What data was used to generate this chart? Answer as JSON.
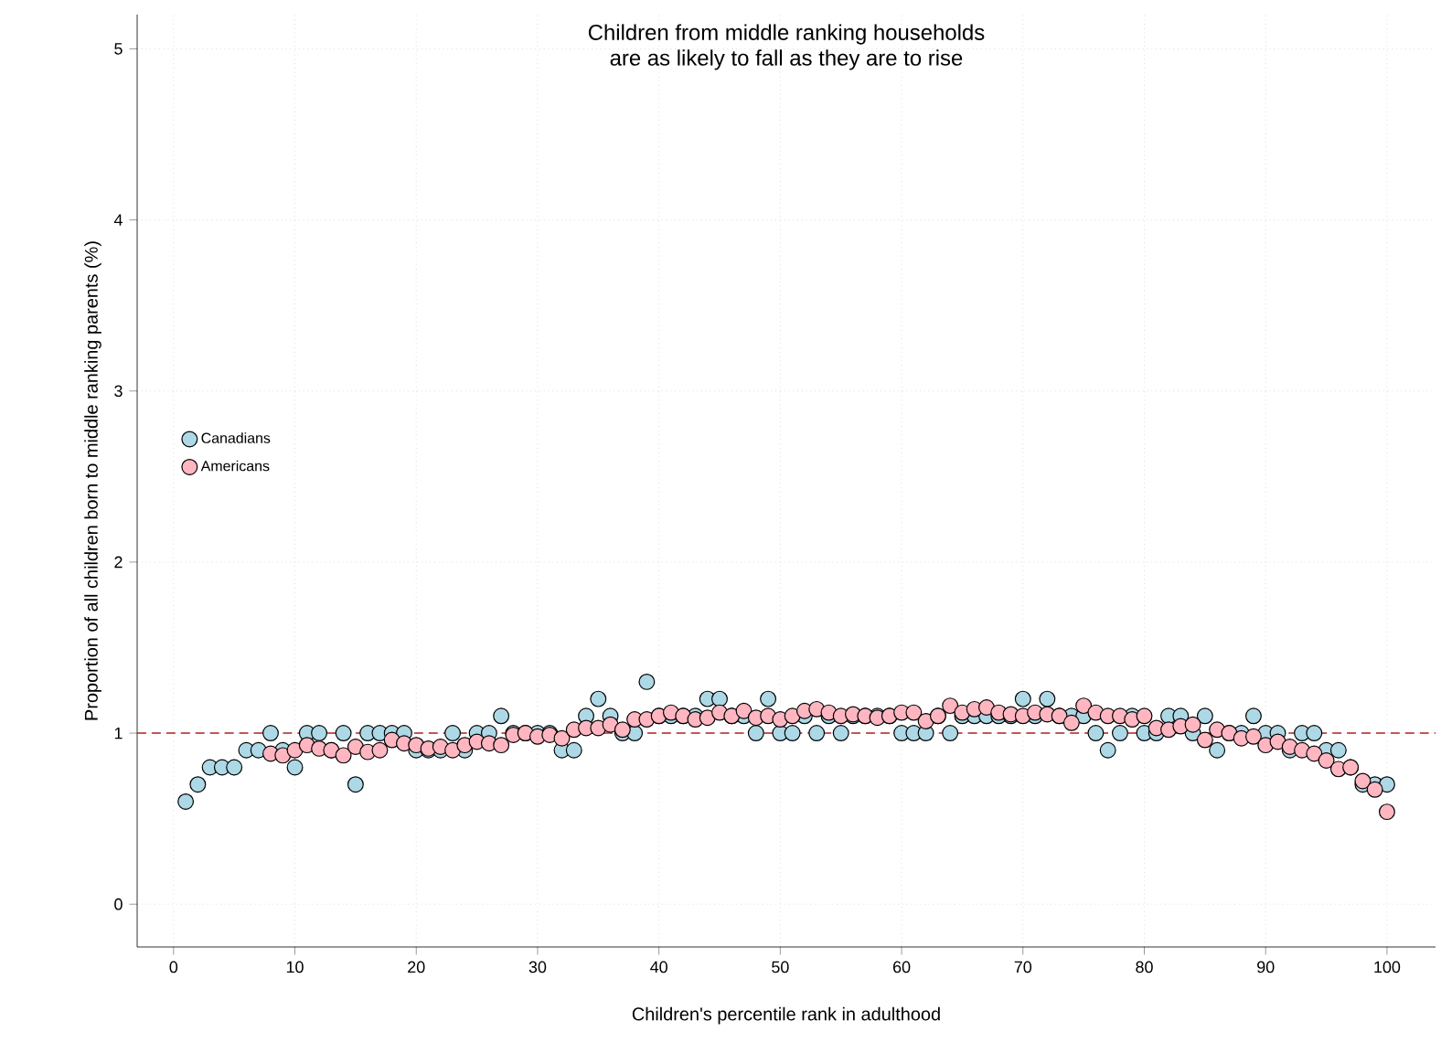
{
  "chart_data": {
    "type": "scatter",
    "title": "Children from middle ranking households\nare as likely to fall as they are to rise",
    "xlabel": "Children's percentile rank in adulthood",
    "ylabel": "Proportion of all children born to middle ranking parents (%)",
    "xlim": [
      -3,
      104
    ],
    "ylim": [
      -0.25,
      5.2
    ],
    "xticks": [
      0,
      10,
      20,
      30,
      40,
      50,
      60,
      70,
      80,
      90,
      100
    ],
    "yticks": [
      0,
      1,
      2,
      3,
      4,
      5
    ],
    "grid": true,
    "legend": "left",
    "ref_lines": [
      {
        "axis": "y",
        "value": 1,
        "color": "#b22222",
        "line_style": "dashed"
      }
    ],
    "series": [
      {
        "name": "Canadians",
        "color": "#add8e6",
        "x": [
          1,
          2,
          3,
          4,
          5,
          6,
          7,
          8,
          9,
          10,
          11,
          12,
          13,
          14,
          15,
          16,
          17,
          18,
          19,
          20,
          21,
          22,
          23,
          24,
          25,
          26,
          27,
          28,
          29,
          30,
          31,
          32,
          33,
          34,
          35,
          36,
          37,
          38,
          39,
          40,
          41,
          42,
          43,
          44,
          45,
          46,
          47,
          48,
          49,
          50,
          51,
          52,
          53,
          54,
          55,
          56,
          57,
          58,
          59,
          60,
          61,
          62,
          63,
          64,
          65,
          66,
          67,
          68,
          69,
          70,
          71,
          72,
          73,
          74,
          75,
          76,
          77,
          78,
          79,
          80,
          81,
          82,
          83,
          84,
          85,
          86,
          87,
          88,
          89,
          90,
          91,
          92,
          93,
          94,
          95,
          96,
          97,
          98,
          99,
          100
        ],
        "values": [
          0.6,
          0.7,
          0.8,
          0.8,
          0.8,
          0.9,
          0.9,
          1.0,
          0.9,
          0.8,
          1.0,
          1.0,
          0.9,
          1.0,
          0.7,
          1.0,
          1.0,
          1.0,
          1.0,
          0.9,
          0.9,
          0.9,
          1.0,
          0.9,
          1.0,
          1.0,
          1.1,
          1.0,
          1.0,
          1.0,
          1.0,
          0.9,
          0.9,
          1.1,
          1.2,
          1.1,
          1.0,
          1.0,
          1.3,
          1.1,
          1.1,
          1.1,
          1.1,
          1.2,
          1.2,
          1.1,
          1.1,
          1.0,
          1.2,
          1.0,
          1.0,
          1.1,
          1.0,
          1.1,
          1.0,
          1.1,
          1.1,
          1.1,
          1.1,
          1.0,
          1.0,
          1.0,
          1.1,
          1.0,
          1.1,
          1.1,
          1.1,
          1.1,
          1.1,
          1.2,
          1.1,
          1.2,
          1.1,
          1.1,
          1.1,
          1.0,
          0.9,
          1.0,
          1.1,
          1.0,
          1.0,
          1.1,
          1.1,
          1.0,
          1.1,
          0.9,
          1.0,
          1.0,
          1.1,
          1.0,
          1.0,
          0.9,
          1.0,
          1.0,
          0.9,
          0.9,
          0.8,
          0.7,
          0.7,
          0.7
        ]
      },
      {
        "name": "Americans",
        "color": "#ffb6c1",
        "x": [
          8,
          9,
          10,
          11,
          12,
          13,
          14,
          15,
          16,
          17,
          18,
          19,
          20,
          21,
          22,
          23,
          24,
          25,
          26,
          27,
          28,
          29,
          30,
          31,
          32,
          33,
          34,
          35,
          36,
          37,
          38,
          39,
          40,
          41,
          42,
          43,
          44,
          45,
          46,
          47,
          48,
          49,
          50,
          51,
          52,
          53,
          54,
          55,
          56,
          57,
          58,
          59,
          60,
          61,
          62,
          63,
          64,
          65,
          66,
          67,
          68,
          69,
          70,
          71,
          72,
          73,
          74,
          75,
          76,
          77,
          78,
          79,
          80,
          81,
          82,
          83,
          84,
          85,
          86,
          87,
          88,
          89,
          90,
          91,
          92,
          93,
          94,
          95,
          96,
          97,
          98,
          99,
          100
        ],
        "values": [
          0.88,
          0.87,
          0.9,
          0.93,
          0.91,
          0.9,
          0.87,
          0.92,
          0.89,
          0.9,
          0.96,
          0.94,
          0.93,
          0.91,
          0.92,
          0.9,
          0.93,
          0.95,
          0.94,
          0.93,
          0.99,
          1.0,
          0.98,
          0.99,
          0.97,
          1.02,
          1.03,
          1.03,
          1.05,
          1.02,
          1.08,
          1.08,
          1.1,
          1.12,
          1.1,
          1.08,
          1.09,
          1.12,
          1.1,
          1.13,
          1.09,
          1.1,
          1.08,
          1.1,
          1.13,
          1.14,
          1.12,
          1.1,
          1.11,
          1.1,
          1.09,
          1.1,
          1.12,
          1.12,
          1.07,
          1.1,
          1.16,
          1.12,
          1.14,
          1.15,
          1.12,
          1.11,
          1.1,
          1.12,
          1.11,
          1.1,
          1.06,
          1.16,
          1.12,
          1.1,
          1.1,
          1.08,
          1.1,
          1.03,
          1.02,
          1.04,
          1.05,
          0.96,
          1.02,
          1.0,
          0.97,
          0.98,
          0.93,
          0.95,
          0.92,
          0.9,
          0.88,
          0.84,
          0.79,
          0.8,
          0.72,
          0.67,
          0.54
        ]
      }
    ]
  }
}
